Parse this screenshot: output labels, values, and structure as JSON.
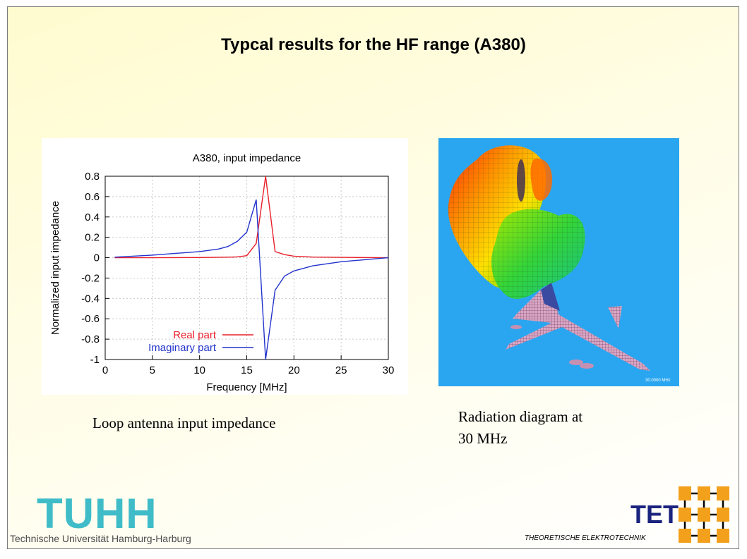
{
  "slide": {
    "title": "Typcal results for the HF range (A380)",
    "caption_left": "Loop antenna input impedance",
    "caption_right_line1": "Radiation diagram at",
    "caption_right_line2": "30 MHz",
    "logo_left_word": "TUHH",
    "logo_left_sub": "Technische Universität Hamburg-Harburg",
    "logo_right_word": "TET",
    "logo_right_label": "THEORETISCHE ELEKTROTECHNIK",
    "radiation_stamp": "30.0000 MHz"
  },
  "chart_data": {
    "type": "line",
    "title": "A380,  input impedance",
    "xlabel": "Frequency [MHz]",
    "ylabel": "Normalized input impedance",
    "xlim": [
      0,
      30
    ],
    "ylim": [
      -1,
      0.8
    ],
    "xticks": [
      "0",
      "5",
      "10",
      "15",
      "20",
      "25",
      "30"
    ],
    "yticks": [
      "0.8",
      "0.6",
      "0.4",
      "0.2",
      "0",
      "-0.2",
      "-0.4",
      "-0.6",
      "-0.8",
      "-1"
    ],
    "grid": true,
    "legend_position": "bottom-left",
    "series": [
      {
        "name": "Real part",
        "color": "#e8202a",
        "x": [
          1,
          5,
          10,
          13,
          14,
          15,
          16,
          17,
          18,
          19,
          20,
          22,
          25,
          30
        ],
        "y": [
          0,
          0,
          0.002,
          0.005,
          0.008,
          0.02,
          0.14,
          0.8,
          0.06,
          0.03,
          0.015,
          0.006,
          0.003,
          0
        ]
      },
      {
        "name": "Imaginary part",
        "color": "#2233cc",
        "x": [
          1,
          5,
          10,
          12,
          13,
          14,
          15,
          16,
          17,
          18,
          19,
          20,
          22,
          25,
          30
        ],
        "y": [
          0.005,
          0.025,
          0.06,
          0.085,
          0.11,
          0.16,
          0.25,
          0.57,
          -1,
          -0.32,
          -0.18,
          -0.13,
          -0.08,
          -0.04,
          0
        ]
      }
    ]
  }
}
